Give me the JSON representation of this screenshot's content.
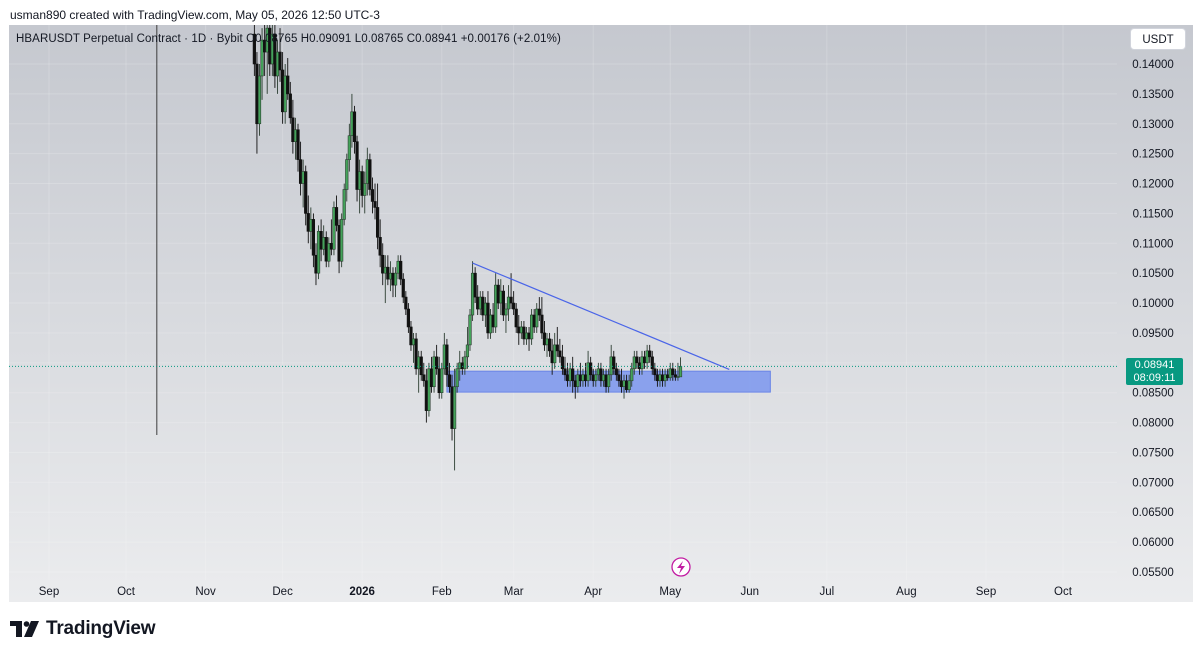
{
  "header": {
    "attribution": "usman890 created with TradingView.com, May 05, 2026 12:50 UTC-3"
  },
  "legend": {
    "symbol": "HBARUSDT Perpetual Contract",
    "interval": "1D",
    "exchange": "Bybit",
    "text": "HBARUSDT Perpetual Contract · 1D · Bybit  O0.08765  H0.09091  L0.08765  C0.08941  +0.00176 (+2.01%)"
  },
  "currency_button": "USDT",
  "price_badge": {
    "price": "0.08941",
    "countdown": "08:09:11",
    "color": "#089981"
  },
  "footer": {
    "brand": "TradingView"
  },
  "colors": {
    "background_top": "#c6c9d0",
    "background_bottom": "#e9eaed",
    "candle_up": "#2c3e31",
    "candle_down": "#111111",
    "trendline": "#4a65e8",
    "zone_fill": "#7b96ee",
    "zone_border": "#6a85e6",
    "price_line": "#089981"
  },
  "chart_data": {
    "type": "candlestick",
    "title": "HBARUSDT Perpetual Contract · 1D · Bybit",
    "ylim": [
      0.0535,
      0.1465
    ],
    "y_ticks": [
      "0.14000",
      "0.13500",
      "0.13000",
      "0.12500",
      "0.12000",
      "0.11500",
      "0.11000",
      "0.10500",
      "0.10000",
      "0.09500",
      "0.09000",
      "0.08500",
      "0.08000",
      "0.07500",
      "0.07000",
      "0.06500",
      "0.06000",
      "0.05500"
    ],
    "x_ticks": [
      {
        "label": "Sep",
        "date": "2025-09-01",
        "bold": false
      },
      {
        "label": "Oct",
        "date": "2025-10-01",
        "bold": false
      },
      {
        "label": "Nov",
        "date": "2025-11-01",
        "bold": false
      },
      {
        "label": "Dec",
        "date": "2025-12-01",
        "bold": false
      },
      {
        "label": "2026",
        "date": "2026-01-01",
        "bold": true
      },
      {
        "label": "Feb",
        "date": "2026-02-01",
        "bold": false
      },
      {
        "label": "Mar",
        "date": "2026-03-01",
        "bold": false
      },
      {
        "label": "Apr",
        "date": "2026-04-01",
        "bold": false
      },
      {
        "label": "May",
        "date": "2026-05-01",
        "bold": false
      },
      {
        "label": "Jun",
        "date": "2026-06-01",
        "bold": false
      },
      {
        "label": "Jul",
        "date": "2026-07-01",
        "bold": false
      },
      {
        "label": "Aug",
        "date": "2026-08-01",
        "bold": false
      },
      {
        "label": "Sep",
        "date": "2026-09-01",
        "bold": false
      },
      {
        "label": "Oct",
        "date": "2026-10-01",
        "bold": false
      }
    ],
    "last_bar": {
      "open": 0.08765,
      "high": 0.09091,
      "low": 0.08765,
      "close": 0.08941,
      "change": 0.00176,
      "change_pct": 2.01
    },
    "trendline": [
      {
        "date": "2026-02-13",
        "value": 0.1067
      },
      {
        "date": "2026-05-24",
        "value": 0.0889
      }
    ],
    "support_zone": {
      "from": "2026-02-03",
      "to": "2026-06-09",
      "low": 0.0851,
      "high": 0.0886
    },
    "vertical_marker_date": "2025-10-13",
    "current_price": 0.08941,
    "candles": [
      [
        "2025-11-20",
        0.145,
        0.148,
        0.138,
        0.14
      ],
      [
        "2025-11-21",
        0.14,
        0.142,
        0.125,
        0.13
      ],
      [
        "2025-11-22",
        0.13,
        0.14,
        0.128,
        0.138
      ],
      [
        "2025-11-23",
        0.138,
        0.146,
        0.134,
        0.144
      ],
      [
        "2025-11-24",
        0.144,
        0.148,
        0.138,
        0.142
      ],
      [
        "2025-11-25",
        0.142,
        0.147,
        0.135,
        0.146
      ],
      [
        "2025-11-26",
        0.146,
        0.148,
        0.138,
        0.14
      ],
      [
        "2025-11-27",
        0.14,
        0.147,
        0.138,
        0.145
      ],
      [
        "2025-11-28",
        0.145,
        0.148,
        0.136,
        0.138
      ],
      [
        "2025-11-29",
        0.138,
        0.144,
        0.135,
        0.142
      ],
      [
        "2025-11-30",
        0.142,
        0.146,
        0.137,
        0.139
      ],
      [
        "2025-12-01",
        0.139,
        0.142,
        0.13,
        0.132
      ],
      [
        "2025-12-02",
        0.132,
        0.14,
        0.13,
        0.138
      ],
      [
        "2025-12-03",
        0.138,
        0.141,
        0.134,
        0.135
      ],
      [
        "2025-12-04",
        0.135,
        0.137,
        0.13,
        0.131
      ],
      [
        "2025-12-05",
        0.131,
        0.134,
        0.125,
        0.127
      ],
      [
        "2025-12-06",
        0.127,
        0.131,
        0.124,
        0.129
      ],
      [
        "2025-12-07",
        0.129,
        0.13,
        0.122,
        0.124
      ],
      [
        "2025-12-08",
        0.124,
        0.127,
        0.118,
        0.12
      ],
      [
        "2025-12-09",
        0.12,
        0.124,
        0.116,
        0.122
      ],
      [
        "2025-12-10",
        0.122,
        0.123,
        0.113,
        0.115
      ],
      [
        "2025-12-11",
        0.115,
        0.118,
        0.11,
        0.112
      ],
      [
        "2025-12-12",
        0.112,
        0.116,
        0.109,
        0.114
      ],
      [
        "2025-12-13",
        0.114,
        0.115,
        0.106,
        0.108
      ],
      [
        "2025-12-14",
        0.108,
        0.11,
        0.103,
        0.105
      ],
      [
        "2025-12-15",
        0.105,
        0.113,
        0.104,
        0.112
      ],
      [
        "2025-12-16",
        0.112,
        0.114,
        0.107,
        0.109
      ],
      [
        "2025-12-17",
        0.109,
        0.113,
        0.108,
        0.111
      ],
      [
        "2025-12-18",
        0.111,
        0.112,
        0.106,
        0.107
      ],
      [
        "2025-12-19",
        0.107,
        0.111,
        0.106,
        0.11
      ],
      [
        "2025-12-20",
        0.11,
        0.114,
        0.108,
        0.109
      ],
      [
        "2025-12-21",
        0.109,
        0.117,
        0.108,
        0.116
      ],
      [
        "2025-12-22",
        0.116,
        0.118,
        0.112,
        0.113
      ],
      [
        "2025-12-23",
        0.113,
        0.114,
        0.105,
        0.107
      ],
      [
        "2025-12-24",
        0.107,
        0.115,
        0.106,
        0.114
      ],
      [
        "2025-12-25",
        0.114,
        0.12,
        0.113,
        0.119
      ],
      [
        "2025-12-26",
        0.119,
        0.125,
        0.117,
        0.124
      ],
      [
        "2025-12-27",
        0.124,
        0.13,
        0.122,
        0.128
      ],
      [
        "2025-12-28",
        0.128,
        0.135,
        0.126,
        0.132
      ],
      [
        "2025-12-29",
        0.132,
        0.133,
        0.125,
        0.127
      ],
      [
        "2025-12-30",
        0.127,
        0.128,
        0.117,
        0.119
      ],
      [
        "2025-12-31",
        0.119,
        0.124,
        0.115,
        0.122
      ],
      [
        "2026-01-01",
        0.122,
        0.123,
        0.116,
        0.118
      ],
      [
        "2026-01-02",
        0.118,
        0.122,
        0.115,
        0.12
      ],
      [
        "2026-01-03",
        0.12,
        0.126,
        0.118,
        0.124
      ],
      [
        "2026-01-04",
        0.124,
        0.125,
        0.118,
        0.119
      ],
      [
        "2026-01-05",
        0.119,
        0.121,
        0.115,
        0.117
      ],
      [
        "2026-01-06",
        0.117,
        0.12,
        0.114,
        0.116
      ],
      [
        "2026-01-07",
        0.116,
        0.12,
        0.109,
        0.111
      ],
      [
        "2026-01-08",
        0.111,
        0.114,
        0.106,
        0.108
      ],
      [
        "2026-01-09",
        0.108,
        0.11,
        0.103,
        0.105
      ],
      [
        "2026-01-10",
        0.105,
        0.108,
        0.1,
        0.106
      ],
      [
        "2026-01-11",
        0.106,
        0.108,
        0.103,
        0.104
      ],
      [
        "2026-01-12",
        0.104,
        0.107,
        0.102,
        0.105
      ],
      [
        "2026-01-13",
        0.105,
        0.106,
        0.101,
        0.103
      ],
      [
        "2026-01-14",
        0.103,
        0.106,
        0.101,
        0.105
      ],
      [
        "2026-01-15",
        0.105,
        0.108,
        0.104,
        0.107
      ],
      [
        "2026-01-16",
        0.107,
        0.108,
        0.103,
        0.104
      ],
      [
        "2026-01-17",
        0.104,
        0.105,
        0.1,
        0.101
      ],
      [
        "2026-01-18",
        0.101,
        0.102,
        0.098,
        0.099
      ],
      [
        "2026-01-19",
        0.099,
        0.1,
        0.095,
        0.096
      ],
      [
        "2026-01-20",
        0.096,
        0.097,
        0.092,
        0.093
      ],
      [
        "2026-01-21",
        0.093,
        0.095,
        0.09,
        0.094
      ],
      [
        "2026-01-22",
        0.094,
        0.095,
        0.088,
        0.089
      ],
      [
        "2026-01-23",
        0.089,
        0.092,
        0.085,
        0.091
      ],
      [
        "2026-01-24",
        0.091,
        0.092,
        0.087,
        0.088
      ],
      [
        "2026-01-25",
        0.088,
        0.09,
        0.086,
        0.087
      ],
      [
        "2026-01-26",
        0.087,
        0.089,
        0.08,
        0.082
      ],
      [
        "2026-01-27",
        0.082,
        0.09,
        0.081,
        0.089
      ],
      [
        "2026-01-28",
        0.089,
        0.091,
        0.085,
        0.086
      ],
      [
        "2026-01-29",
        0.086,
        0.092,
        0.085,
        0.091
      ],
      [
        "2026-01-30",
        0.091,
        0.093,
        0.088,
        0.089
      ],
      [
        "2026-01-31",
        0.089,
        0.091,
        0.084,
        0.085
      ],
      [
        "2026-02-01",
        0.085,
        0.09,
        0.084,
        0.089
      ],
      [
        "2026-02-02",
        0.089,
        0.095,
        0.088,
        0.093
      ],
      [
        "2026-02-03",
        0.093,
        0.094,
        0.086,
        0.088
      ],
      [
        "2026-02-04",
        0.088,
        0.09,
        0.085,
        0.086
      ],
      [
        "2026-02-05",
        0.086,
        0.088,
        0.077,
        0.079
      ],
      [
        "2026-02-06",
        0.079,
        0.089,
        0.072,
        0.086
      ],
      [
        "2026-02-07",
        0.086,
        0.09,
        0.085,
        0.089
      ],
      [
        "2026-02-08",
        0.089,
        0.092,
        0.087,
        0.09
      ],
      [
        "2026-02-09",
        0.09,
        0.091,
        0.088,
        0.089
      ],
      [
        "2026-02-10",
        0.089,
        0.092,
        0.088,
        0.091
      ],
      [
        "2026-02-11",
        0.091,
        0.096,
        0.089,
        0.093
      ],
      [
        "2026-02-12",
        0.093,
        0.099,
        0.092,
        0.098
      ],
      [
        "2026-02-13",
        0.098,
        0.107,
        0.097,
        0.105
      ],
      [
        "2026-02-14",
        0.105,
        0.106,
        0.1,
        0.101
      ],
      [
        "2026-02-15",
        0.101,
        0.103,
        0.098,
        0.099
      ],
      [
        "2026-02-16",
        0.099,
        0.102,
        0.098,
        0.101
      ],
      [
        "2026-02-17",
        0.101,
        0.102,
        0.097,
        0.098
      ],
      [
        "2026-02-18",
        0.098,
        0.101,
        0.096,
        0.1
      ],
      [
        "2026-02-19",
        0.1,
        0.102,
        0.094,
        0.095
      ],
      [
        "2026-02-20",
        0.095,
        0.099,
        0.094,
        0.098
      ],
      [
        "2026-02-21",
        0.098,
        0.1,
        0.095,
        0.096
      ],
      [
        "2026-02-22",
        0.096,
        0.105,
        0.095,
        0.103
      ],
      [
        "2026-02-23",
        0.103,
        0.104,
        0.099,
        0.1
      ],
      [
        "2026-02-24",
        0.1,
        0.104,
        0.098,
        0.102
      ],
      [
        "2026-02-25",
        0.102,
        0.103,
        0.097,
        0.098
      ],
      [
        "2026-02-26",
        0.098,
        0.1,
        0.095,
        0.099
      ],
      [
        "2026-02-27",
        0.099,
        0.103,
        0.097,
        0.101
      ],
      [
        "2026-02-28",
        0.101,
        0.105,
        0.099,
        0.1
      ],
      [
        "2026-03-01",
        0.1,
        0.102,
        0.098,
        0.099
      ],
      [
        "2026-03-02",
        0.099,
        0.1,
        0.095,
        0.096
      ],
      [
        "2026-03-03",
        0.096,
        0.098,
        0.093,
        0.095
      ],
      [
        "2026-03-04",
        0.095,
        0.097,
        0.094,
        0.096
      ],
      [
        "2026-03-05",
        0.096,
        0.097,
        0.093,
        0.094
      ],
      [
        "2026-03-06",
        0.094,
        0.096,
        0.093,
        0.095
      ],
      [
        "2026-03-07",
        0.095,
        0.096,
        0.092,
        0.094
      ],
      [
        "2026-03-08",
        0.094,
        0.099,
        0.093,
        0.098
      ],
      [
        "2026-03-09",
        0.098,
        0.099,
        0.095,
        0.096
      ],
      [
        "2026-03-10",
        0.096,
        0.1,
        0.095,
        0.099
      ],
      [
        "2026-03-11",
        0.099,
        0.101,
        0.097,
        0.098
      ],
      [
        "2026-03-12",
        0.098,
        0.101,
        0.094,
        0.095
      ],
      [
        "2026-03-13",
        0.095,
        0.097,
        0.092,
        0.093
      ],
      [
        "2026-03-14",
        0.093,
        0.095,
        0.091,
        0.094
      ],
      [
        "2026-03-15",
        0.094,
        0.095,
        0.091,
        0.092
      ],
      [
        "2026-03-16",
        0.092,
        0.094,
        0.088,
        0.09
      ],
      [
        "2026-03-17",
        0.09,
        0.095,
        0.089,
        0.093
      ],
      [
        "2026-03-18",
        0.093,
        0.096,
        0.091,
        0.092
      ],
      [
        "2026-03-19",
        0.092,
        0.094,
        0.09,
        0.091
      ],
      [
        "2026-03-20",
        0.091,
        0.093,
        0.088,
        0.089
      ],
      [
        "2026-03-21",
        0.089,
        0.091,
        0.087,
        0.088
      ],
      [
        "2026-03-22",
        0.088,
        0.09,
        0.086,
        0.087
      ],
      [
        "2026-03-23",
        0.087,
        0.09,
        0.086,
        0.089
      ],
      [
        "2026-03-24",
        0.089,
        0.091,
        0.085,
        0.087
      ],
      [
        "2026-03-25",
        0.087,
        0.088,
        0.084,
        0.086
      ],
      [
        "2026-03-26",
        0.086,
        0.089,
        0.085,
        0.088
      ],
      [
        "2026-03-27",
        0.088,
        0.09,
        0.086,
        0.087
      ],
      [
        "2026-03-28",
        0.087,
        0.089,
        0.086,
        0.088
      ],
      [
        "2026-03-29",
        0.088,
        0.09,
        0.086,
        0.087
      ],
      [
        "2026-03-30",
        0.087,
        0.092,
        0.086,
        0.09
      ],
      [
        "2026-03-31",
        0.09,
        0.091,
        0.087,
        0.088
      ],
      [
        "2026-04-01",
        0.088,
        0.089,
        0.086,
        0.087
      ],
      [
        "2026-04-02",
        0.087,
        0.089,
        0.086,
        0.088
      ],
      [
        "2026-04-03",
        0.088,
        0.09,
        0.087,
        0.089
      ],
      [
        "2026-04-04",
        0.089,
        0.09,
        0.086,
        0.087
      ],
      [
        "2026-04-05",
        0.087,
        0.089,
        0.086,
        0.088
      ],
      [
        "2026-04-06",
        0.088,
        0.089,
        0.085,
        0.086
      ],
      [
        "2026-04-07",
        0.086,
        0.089,
        0.085,
        0.088
      ],
      [
        "2026-04-08",
        0.088,
        0.093,
        0.087,
        0.091
      ],
      [
        "2026-04-09",
        0.091,
        0.092,
        0.088,
        0.089
      ],
      [
        "2026-04-10",
        0.089,
        0.09,
        0.087,
        0.088
      ],
      [
        "2026-04-11",
        0.088,
        0.089,
        0.086,
        0.087
      ],
      [
        "2026-04-12",
        0.087,
        0.089,
        0.085,
        0.086
      ],
      [
        "2026-04-13",
        0.086,
        0.088,
        0.084,
        0.087
      ],
      [
        "2026-04-14",
        0.087,
        0.088,
        0.085,
        0.0855
      ],
      [
        "2026-04-15",
        0.0855,
        0.088,
        0.085,
        0.087
      ],
      [
        "2026-04-16",
        0.087,
        0.09,
        0.086,
        0.089
      ],
      [
        "2026-04-17",
        0.089,
        0.092,
        0.088,
        0.091
      ],
      [
        "2026-04-18",
        0.091,
        0.092,
        0.089,
        0.09
      ],
      [
        "2026-04-19",
        0.09,
        0.091,
        0.088,
        0.089
      ],
      [
        "2026-04-20",
        0.089,
        0.092,
        0.088,
        0.091
      ],
      [
        "2026-04-21",
        0.091,
        0.092,
        0.089,
        0.09
      ],
      [
        "2026-04-22",
        0.09,
        0.093,
        0.089,
        0.092
      ],
      [
        "2026-04-23",
        0.092,
        0.093,
        0.09,
        0.091
      ],
      [
        "2026-04-24",
        0.091,
        0.092,
        0.088,
        0.089
      ],
      [
        "2026-04-25",
        0.089,
        0.09,
        0.087,
        0.088
      ],
      [
        "2026-04-26",
        0.088,
        0.089,
        0.086,
        0.087
      ],
      [
        "2026-04-27",
        0.087,
        0.089,
        0.086,
        0.088
      ],
      [
        "2026-04-28",
        0.088,
        0.089,
        0.086,
        0.087
      ],
      [
        "2026-04-29",
        0.087,
        0.089,
        0.086,
        0.088
      ],
      [
        "2026-04-30",
        0.088,
        0.089,
        0.087,
        0.0875
      ],
      [
        "2026-05-01",
        0.0875,
        0.09,
        0.087,
        0.089
      ],
      [
        "2026-05-02",
        0.089,
        0.09,
        0.087,
        0.088
      ],
      [
        "2026-05-03",
        0.088,
        0.089,
        0.087,
        0.0876
      ],
      [
        "2026-05-04",
        0.0876,
        0.09,
        0.087,
        0.0877
      ],
      [
        "2026-05-05",
        0.08765,
        0.09091,
        0.08765,
        0.08941
      ]
    ]
  }
}
